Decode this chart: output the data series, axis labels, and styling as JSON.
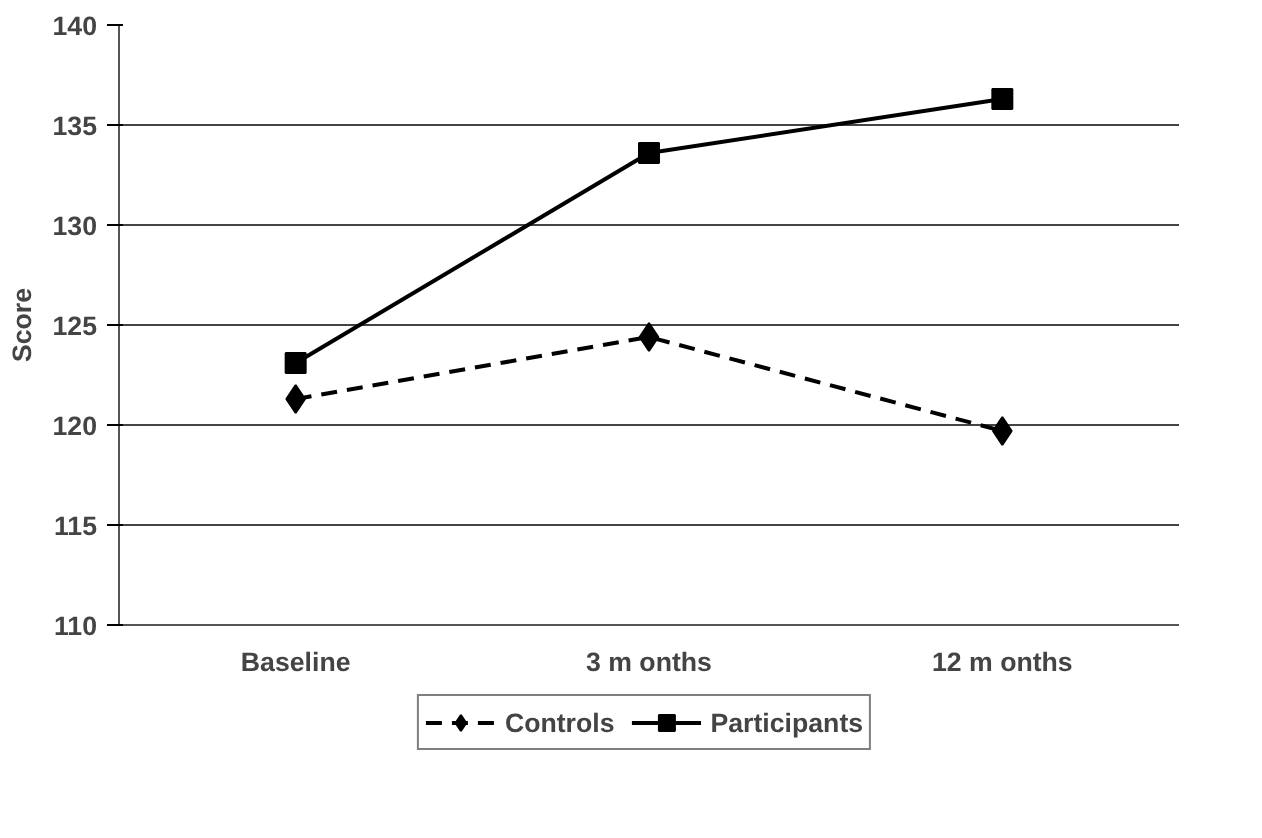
{
  "chart_data": {
    "type": "line",
    "ylabel": "Score",
    "categories": [
      "Baseline",
      "3 m onths",
      "12 m onths"
    ],
    "series": [
      {
        "name": "Controls",
        "color": "#000000",
        "values": [
          121.3,
          124.4,
          119.7
        ],
        "line_style": "dashed",
        "marker": "diamond"
      },
      {
        "name": "Participants",
        "color": "#000000",
        "values": [
          123.1,
          133.6,
          136.3
        ],
        "line_style": "solid",
        "marker": "square"
      }
    ],
    "ylim": [
      110,
      140
    ],
    "yticks": [
      110,
      115,
      120,
      125,
      130,
      135,
      140
    ],
    "grid": "y",
    "legend": "bottom"
  }
}
